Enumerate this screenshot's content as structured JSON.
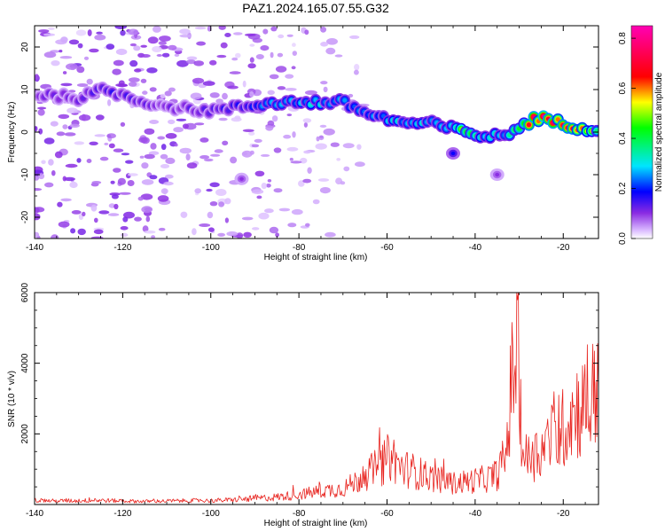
{
  "chart_data": [
    {
      "type": "heatmap",
      "title": "PAZ1.2024.165.07.55.G32",
      "xlabel": "Height of straight line (km)",
      "ylabel": "Frequency (Hz)",
      "xlim": [
        -140,
        -12
      ],
      "ylim": [
        -25,
        25
      ],
      "xticks": [
        -140,
        -120,
        -100,
        -80,
        -60,
        -40,
        -20
      ],
      "yticks": [
        -20,
        -10,
        0,
        10,
        20
      ],
      "colorbar": {
        "label": "Normalized spectral amplitude",
        "range": [
          0,
          0.85
        ],
        "ticks": [
          0.0,
          0.2,
          0.4,
          0.6,
          0.8
        ],
        "colormap": "rainbow (white, violet, blue, cyan, green, yellow, red, magenta)"
      },
      "ridge": {
        "description": "dominant frequency ridge",
        "x": [
          -140,
          -130,
          -124,
          -118,
          -110,
          -100,
          -92,
          -86,
          -80,
          -74,
          -70,
          -66,
          -60,
          -55,
          -50,
          -46,
          -42,
          -38,
          -34,
          -30,
          -27,
          -24,
          -20,
          -16,
          -12
        ],
        "y": [
          9,
          8,
          10,
          8,
          6,
          5,
          6,
          7,
          7,
          7,
          7,
          5,
          3,
          2,
          2,
          1,
          0,
          -1,
          -1,
          1,
          3,
          3,
          2,
          1,
          1
        ],
        "peak_amplitude": [
          0.12,
          0.14,
          0.18,
          0.15,
          0.12,
          0.14,
          0.18,
          0.28,
          0.3,
          0.32,
          0.3,
          0.25,
          0.3,
          0.32,
          0.3,
          0.28,
          0.55,
          0.35,
          0.3,
          0.45,
          0.75,
          0.78,
          0.72,
          0.6,
          0.45
        ]
      },
      "blobs": [
        {
          "x": -45,
          "y": -5,
          "amplitude": 0.18
        },
        {
          "x": -35,
          "y": -10,
          "amplitude": 0.1
        },
        {
          "x": -93,
          "y": -11,
          "amplitude": 0.1
        }
      ],
      "noise_extent_x": [
        -140,
        -70
      ],
      "grid": false
    },
    {
      "type": "line",
      "xlabel": "Height of straight line (km)",
      "ylabel": "SNR (10 * v/v)",
      "xlim": [
        -140,
        -12
      ],
      "ylim": [
        0,
        6000
      ],
      "xticks": [
        -140,
        -120,
        -100,
        -80,
        -60,
        -40,
        -20
      ],
      "yticks": [
        2000,
        4000,
        6000
      ],
      "color": "#e8231e",
      "series": [
        {
          "x": [
            -140,
            -135,
            -130,
            -125,
            -120,
            -115,
            -110,
            -105,
            -100,
            -95,
            -90,
            -86,
            -82,
            -78,
            -74,
            -70,
            -67,
            -64,
            -61,
            -59,
            -57,
            -54,
            -51,
            -48,
            -45,
            -42,
            -39,
            -37,
            -35,
            -33,
            -32,
            -31,
            -30.5,
            -30,
            -29,
            -27,
            -25,
            -23,
            -21,
            -20,
            -18,
            -16,
            -14,
            -13,
            -12
          ],
          "y": [
            120,
            100,
            110,
            120,
            100,
            90,
            100,
            110,
            110,
            130,
            170,
            200,
            250,
            320,
            400,
            450,
            650,
            900,
            1150,
            1400,
            1050,
            950,
            800,
            700,
            600,
            650,
            700,
            750,
            850,
            1400,
            3000,
            4300,
            5100,
            3400,
            1300,
            1400,
            1500,
            1900,
            1800,
            2200,
            2600,
            2800,
            2700,
            3200,
            3600
          ]
        }
      ],
      "grid": false
    }
  ]
}
